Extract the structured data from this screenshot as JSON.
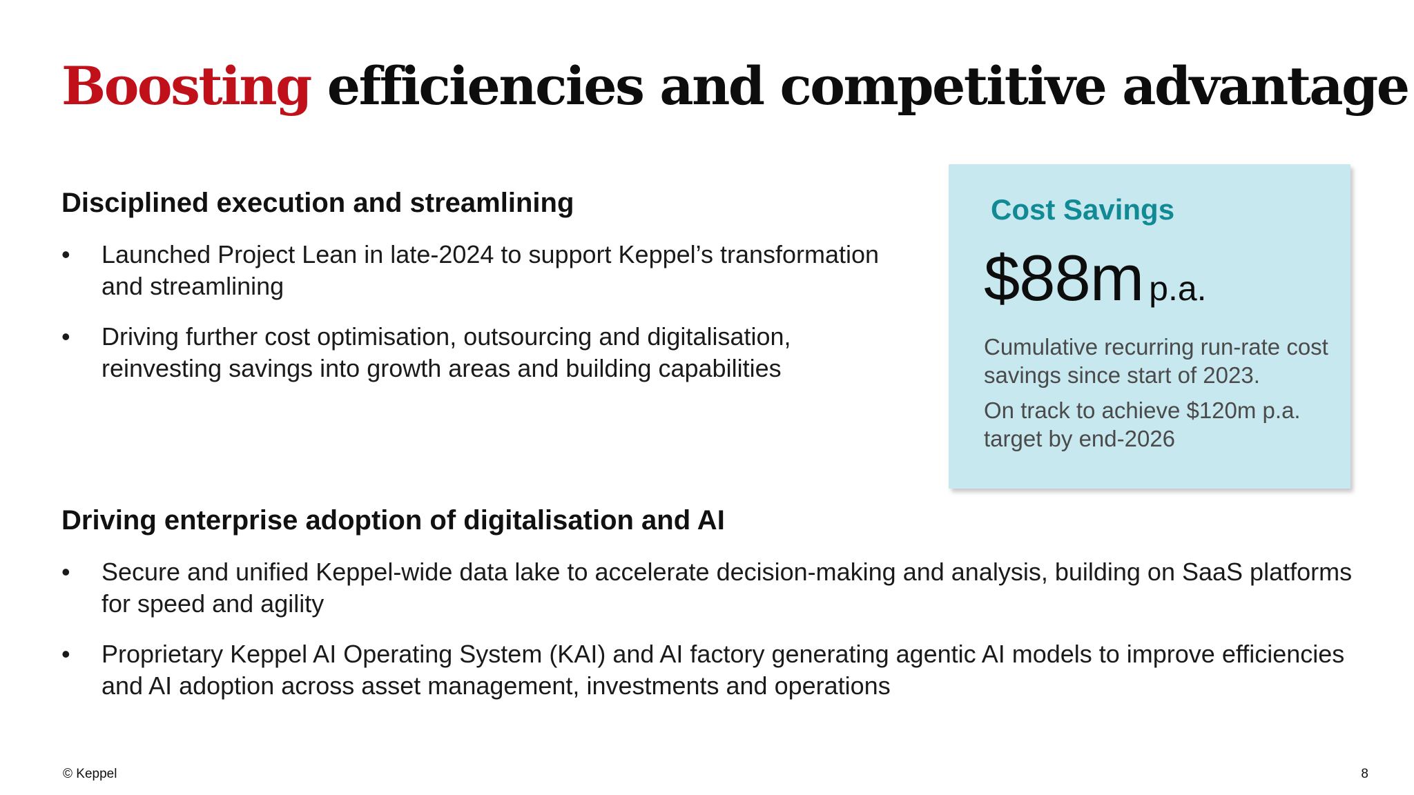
{
  "title": {
    "accent": "Boosting",
    "rest": " efficiencies and competitive advantage"
  },
  "section1": {
    "heading": "Disciplined execution and streamlining",
    "bullets": [
      "Launched Project Lean in late-2024 to support Keppel’s transformation and streamlining",
      "Driving further cost optimisation, outsourcing and digitalisation, reinvesting savings into growth areas and building capabilities"
    ]
  },
  "section2": {
    "heading": "Driving enterprise adoption of digitalisation and AI",
    "bullets": [
      "Secure and unified Keppel-wide data lake to accelerate decision-making and analysis, building on SaaS platforms for speed and agility",
      "Proprietary Keppel AI Operating System (KAI) and AI factory generating agentic AI models to improve efficiencies and AI adoption across asset management, investments and operations"
    ]
  },
  "card": {
    "title": "Cost Savings",
    "value": "$88m",
    "unit": "p.a.",
    "note1": "Cumulative recurring run-rate cost savings since start of 2023.",
    "note2": "On track to achieve $120m p.a. target by end-2026"
  },
  "footer": {
    "copyright": "© Keppel",
    "page_number": "8"
  },
  "bullet_symbol": "•",
  "colors": {
    "accent_red": "#c0111b",
    "card_background": "#c7e8ef",
    "card_title_teal": "#118a96"
  }
}
